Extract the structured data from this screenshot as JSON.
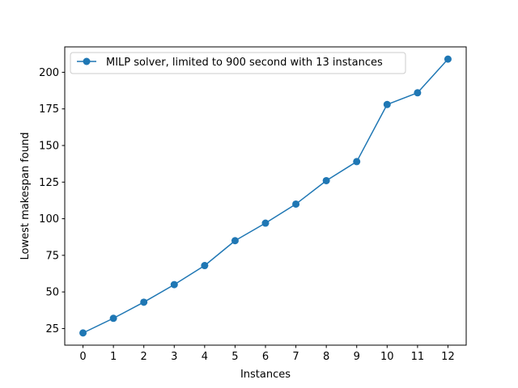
{
  "chart_data": {
    "type": "line",
    "title": "",
    "xlabel": "Instances",
    "ylabel": "Lowest makespan found",
    "x": [
      0,
      1,
      2,
      3,
      4,
      5,
      6,
      7,
      8,
      9,
      10,
      11,
      12
    ],
    "x_ticks": [
      0,
      1,
      2,
      3,
      4,
      5,
      6,
      7,
      8,
      9,
      10,
      11,
      12
    ],
    "y_ticks": [
      25,
      50,
      75,
      100,
      125,
      150,
      175,
      200
    ],
    "xlim": [
      -0.6,
      12.6
    ],
    "ylim": [
      13.65,
      217.35
    ],
    "grid": false,
    "legend_position": "upper-left",
    "series": [
      {
        "name": "MILP solver, limited to 900 second with 13 instances",
        "color": "#1f77b4",
        "marker": "circle",
        "values": [
          22,
          32,
          43,
          55,
          68,
          85,
          97,
          110,
          126,
          139,
          178,
          186,
          209
        ]
      }
    ]
  }
}
